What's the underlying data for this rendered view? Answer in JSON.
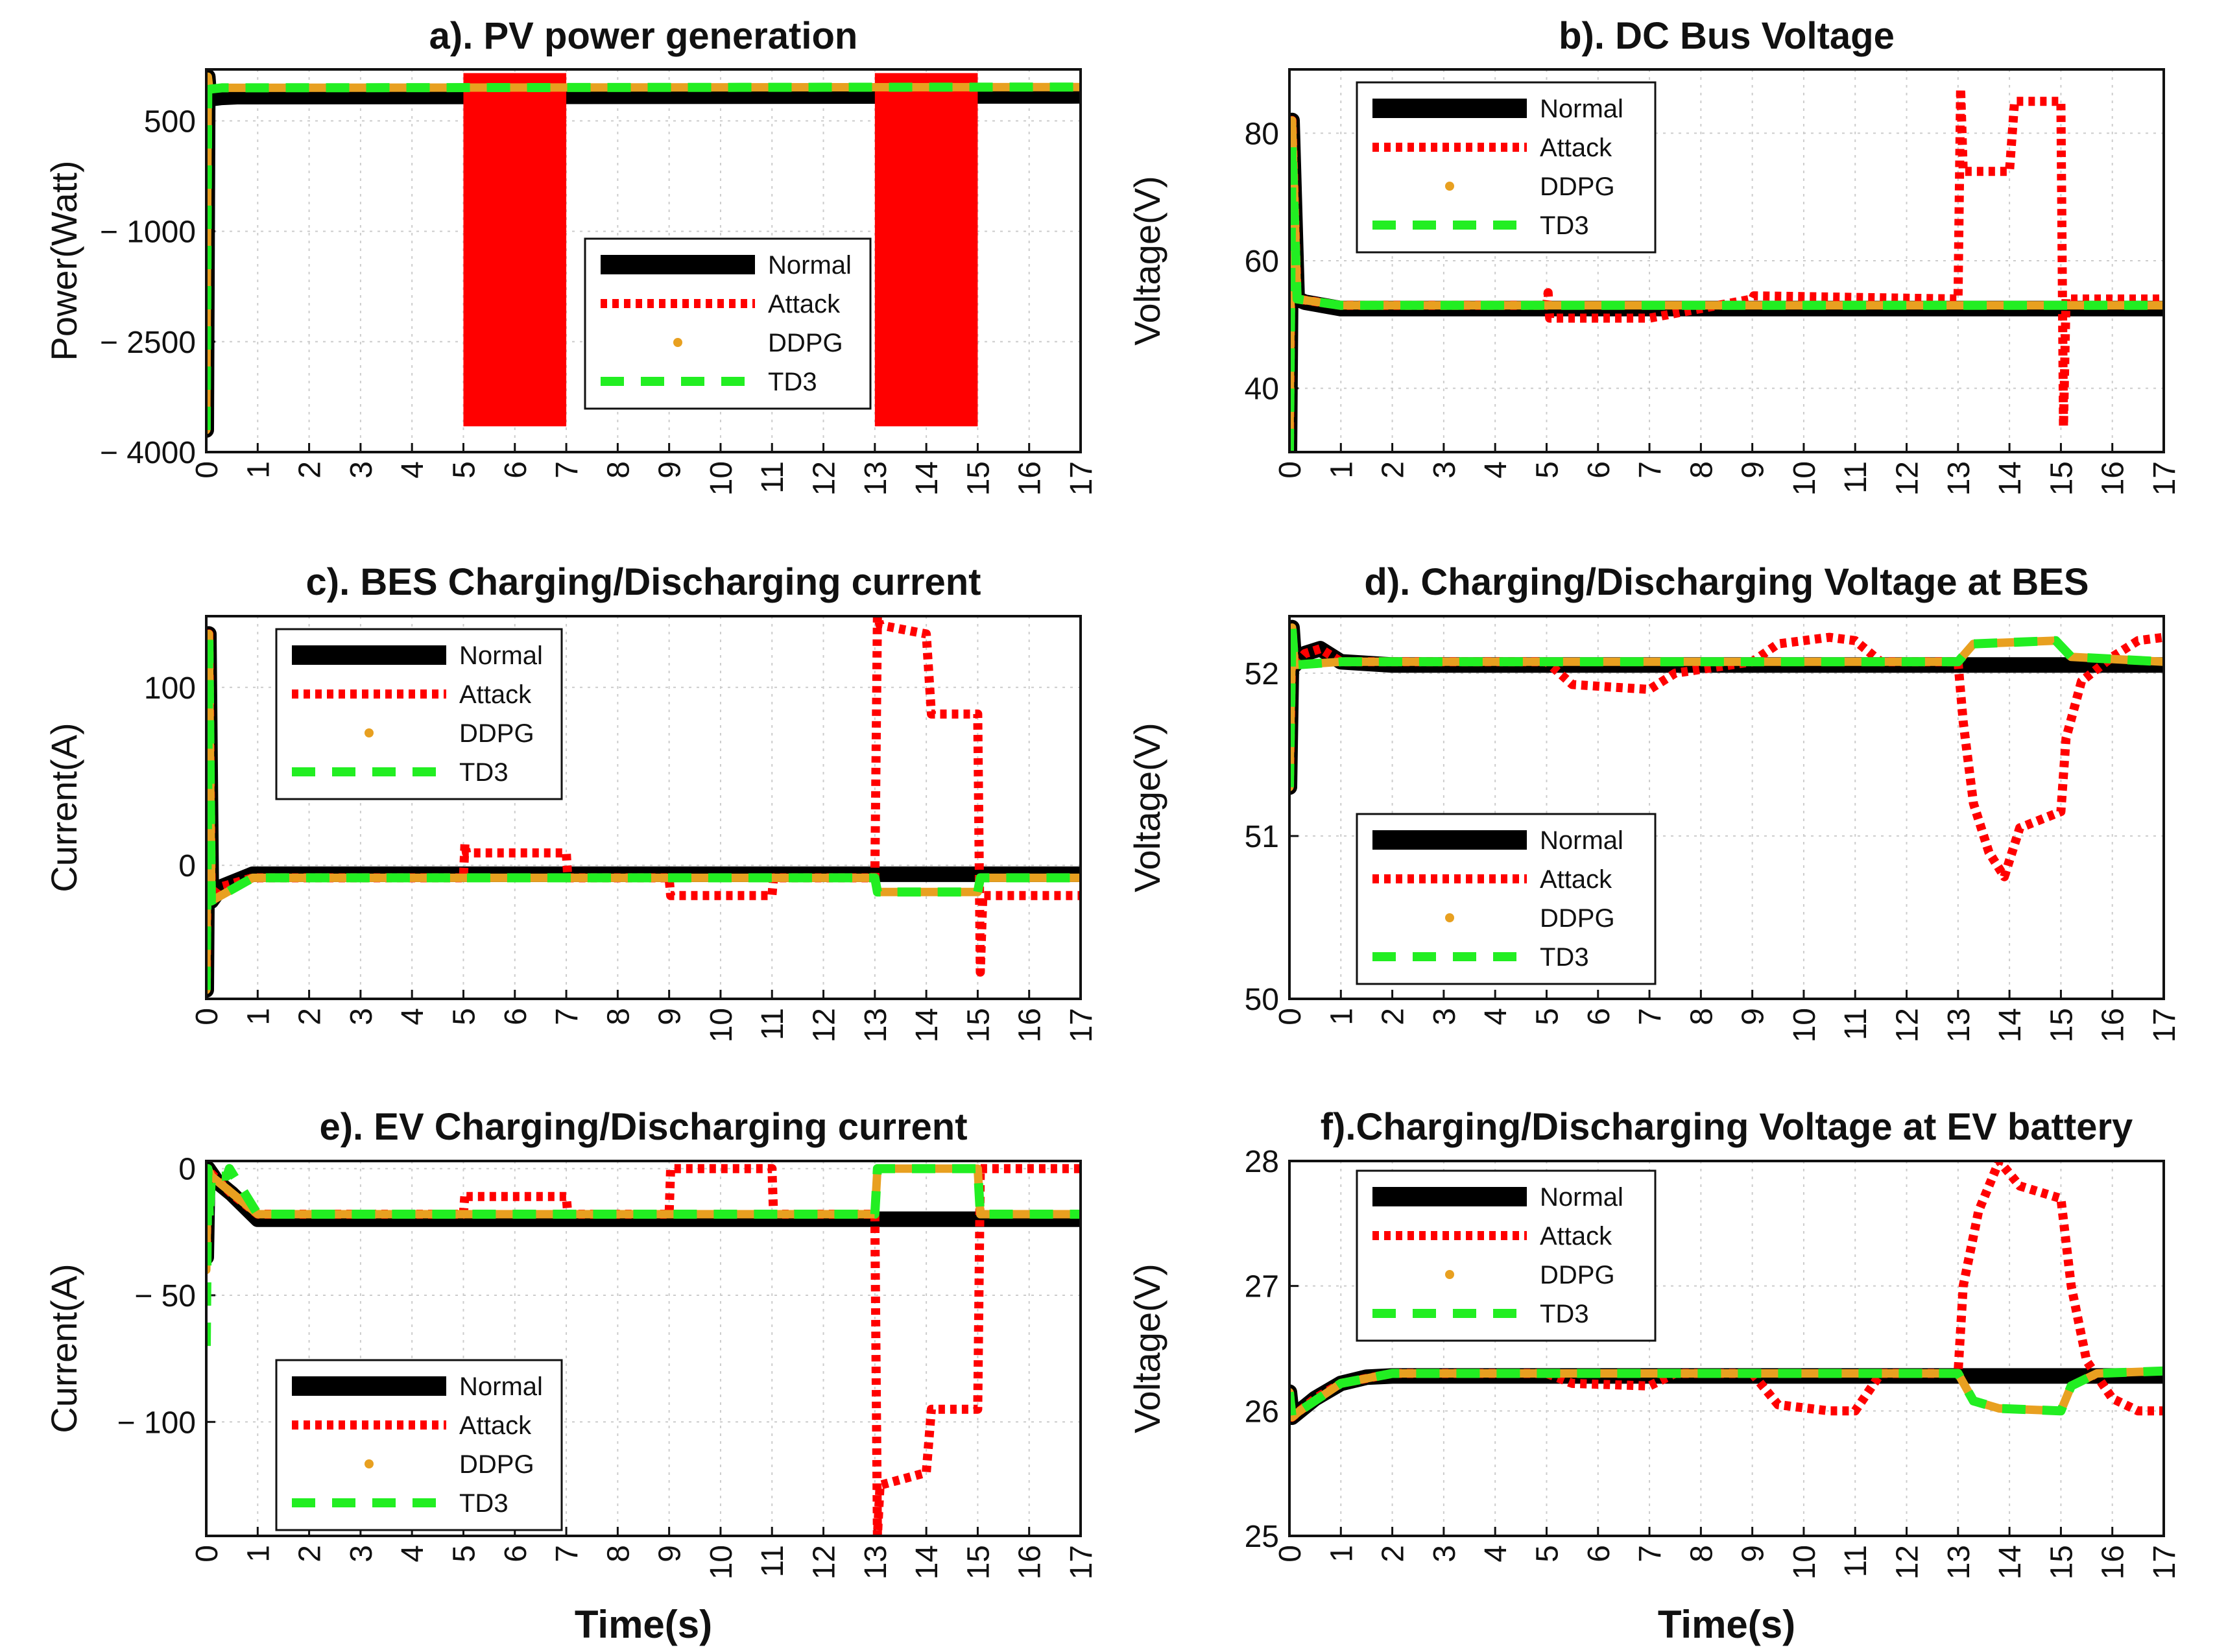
{
  "figure": {
    "x_label": "Time(s)"
  },
  "legend_entries": [
    "Normal",
    "Attack",
    "DDPG",
    "TD3"
  ],
  "colors": {
    "normal": "#000000",
    "attack": "#ff0000",
    "ddpg": "#e8a020",
    "td3": "#22ee22",
    "grid": "#cccccc"
  },
  "chart_data": [
    {
      "id": "a",
      "type": "line",
      "title": "a). PV power generation",
      "ylabel": "Power(Watt)",
      "xlim": [
        0,
        17
      ],
      "ylim": [
        -4000,
        1200
      ],
      "yticks": [
        500,
        -1000,
        -2500,
        -4000
      ],
      "ytick_labels": [
        "500",
        "− 1000",
        "− 2500",
        "− 4000"
      ],
      "legend_position": "center-right",
      "series": [
        {
          "name": "Normal",
          "x": [
            0,
            0.03,
            0.06,
            0.3,
            0.6,
            17
          ],
          "y": [
            -3700,
            1100,
            800,
            820,
            830,
            840
          ]
        },
        {
          "name": "Attack",
          "x": [
            5,
            7,
            13,
            15
          ],
          "y": [
            -3650,
            1150,
            -3650,
            1150
          ]
        },
        {
          "name": "DDPG",
          "x": [
            0,
            0.03,
            0.06,
            0.3,
            17
          ],
          "y": [
            -3700,
            1100,
            930,
            950,
            960
          ]
        },
        {
          "name": "TD3",
          "x": [
            0,
            0.03,
            0.06,
            0.3,
            17
          ],
          "y": [
            -3700,
            1100,
            930,
            950,
            960
          ]
        }
      ]
    },
    {
      "id": "b",
      "type": "line",
      "title": "b). DC Bus Voltage",
      "ylabel": "Voltage(V)",
      "xlim": [
        0,
        17
      ],
      "ylim": [
        30,
        90
      ],
      "yticks": [
        40,
        60,
        80
      ],
      "ytick_labels": [
        "40",
        "60",
        "80"
      ],
      "legend_position": "top-left",
      "series": [
        {
          "name": "Normal",
          "x": [
            0,
            0.05,
            0.15,
            0.3,
            1,
            17
          ],
          "y": [
            30,
            82,
            54,
            53.5,
            52.5,
            52.5
          ]
        },
        {
          "name": "Attack",
          "x": [
            0,
            0.05,
            0.15,
            1,
            5,
            5.03,
            5.06,
            7,
            9,
            9.03,
            13,
            13.05,
            13.1,
            14,
            14.1,
            15,
            15.05,
            15.1,
            17
          ],
          "y": [
            30,
            82,
            54,
            53,
            53,
            55,
            51,
            51,
            54,
            54.5,
            54,
            87,
            74,
            74,
            85,
            85,
            34,
            54,
            54
          ]
        },
        {
          "name": "DDPG",
          "x": [
            0,
            0.05,
            0.15,
            1,
            17
          ],
          "y": [
            30,
            82,
            54,
            53,
            53
          ]
        },
        {
          "name": "TD3",
          "x": [
            0,
            0.05,
            0.15,
            1,
            17
          ],
          "y": [
            30,
            78,
            54,
            53,
            53
          ]
        }
      ]
    },
    {
      "id": "c",
      "type": "line",
      "title": "c). BES Charging/Discharging current",
      "ylabel": "Current(A)",
      "xlim": [
        0,
        17
      ],
      "ylim": [
        -75,
        140
      ],
      "yticks": [
        0,
        100
      ],
      "ytick_labels": [
        "0",
        "100"
      ],
      "legend_position": "top-left",
      "series": [
        {
          "name": "Normal",
          "x": [
            0,
            0.05,
            0.1,
            0.3,
            0.9,
            17
          ],
          "y": [
            -70,
            130,
            -20,
            -12,
            -5,
            -5
          ]
        },
        {
          "name": "Attack",
          "x": [
            0,
            0.05,
            0.1,
            0.3,
            0.9,
            5,
            5.03,
            5.06,
            7,
            7.03,
            9,
            9.03,
            11,
            11.03,
            13,
            13.05,
            13.1,
            14,
            14.1,
            15,
            15.05,
            15.1,
            17
          ],
          "y": [
            -70,
            130,
            -20,
            -12,
            -7,
            -7,
            12,
            7,
            7,
            -7,
            -7,
            -17,
            -17,
            -7,
            -7,
            140,
            135,
            130,
            85,
            85,
            -60,
            -17,
            -17
          ]
        },
        {
          "name": "DDPG",
          "x": [
            0,
            0.05,
            0.1,
            0.9,
            13,
            13.05,
            15,
            15.05,
            17
          ],
          "y": [
            -70,
            130,
            -20,
            -7,
            -7,
            -15,
            -15,
            -7,
            -7
          ]
        },
        {
          "name": "TD3",
          "x": [
            0,
            0.05,
            0.1,
            0.9,
            13,
            13.05,
            15,
            15.05,
            17
          ],
          "y": [
            -70,
            130,
            -20,
            -7,
            -7,
            -15,
            -15,
            -7,
            -7
          ]
        }
      ]
    },
    {
      "id": "d",
      "type": "line",
      "title": "d). Charging/Discharging Voltage at BES",
      "ylabel": "Voltage(V)",
      "xlim": [
        0,
        17
      ],
      "ylim": [
        50,
        52.35
      ],
      "yticks": [
        50,
        51,
        52
      ],
      "ytick_labels": [
        "50",
        "51",
        "52"
      ],
      "legend_position": "bottom-left",
      "series": [
        {
          "name": "Normal",
          "x": [
            0,
            0.05,
            0.1,
            0.3,
            0.6,
            1,
            2,
            17
          ],
          "y": [
            51.3,
            52.28,
            52.05,
            52.12,
            52.15,
            52.07,
            52.05,
            52.05
          ]
        },
        {
          "name": "Attack",
          "x": [
            0,
            0.05,
            0.1,
            0.3,
            0.6,
            1,
            5,
            5.5,
            7,
            7.5,
            9,
            9.5,
            10.5,
            11,
            11.5,
            13,
            13.1,
            13.3,
            13.6,
            13.9,
            14.0,
            14.2,
            15,
            15.1,
            15.4,
            16,
            16.5,
            17
          ],
          "y": [
            51.3,
            52.28,
            52.05,
            52.12,
            52.15,
            52.07,
            52.07,
            51.93,
            51.9,
            52.0,
            52.07,
            52.18,
            52.22,
            52.2,
            52.07,
            52.07,
            51.7,
            51.2,
            50.9,
            50.75,
            50.85,
            51.05,
            51.15,
            51.6,
            51.95,
            52.1,
            52.2,
            52.22
          ]
        },
        {
          "name": "DDPG",
          "x": [
            0,
            0.05,
            0.1,
            1,
            13,
            13.3,
            14.9,
            15.2,
            17
          ],
          "y": [
            51.3,
            52.28,
            52.05,
            52.07,
            52.07,
            52.18,
            52.2,
            52.1,
            52.07
          ]
        },
        {
          "name": "TD3",
          "x": [
            0,
            0.05,
            0.1,
            1,
            13,
            13.3,
            14.9,
            15.2,
            17
          ],
          "y": [
            51.3,
            52.28,
            52.05,
            52.07,
            52.07,
            52.18,
            52.2,
            52.1,
            52.07
          ]
        }
      ]
    },
    {
      "id": "e",
      "type": "line",
      "title": "e). EV Charging/Discharging current",
      "ylabel": "Current(A)",
      "xlim": [
        0,
        17
      ],
      "ylim": [
        -145,
        3
      ],
      "yticks": [
        0,
        -50,
        -100
      ],
      "ytick_labels": [
        "0",
        "− 50",
        "− 100"
      ],
      "legend_position": "bottom-left",
      "series": [
        {
          "name": "Normal",
          "x": [
            0,
            0.03,
            0.1,
            0.2,
            0.5,
            1,
            17
          ],
          "y": [
            -35,
            0,
            -2,
            -5,
            -10,
            -20,
            -20
          ]
        },
        {
          "name": "Attack",
          "x": [
            0,
            0.03,
            0.1,
            0.5,
            1,
            5,
            5.03,
            5.06,
            7,
            7.03,
            9,
            9.03,
            11,
            11.03,
            13,
            13.05,
            13.1,
            14,
            14.1,
            15,
            15.05,
            15.1,
            17
          ],
          "y": [
            -35,
            0,
            -2,
            -10,
            -18,
            -18,
            -10,
            -11,
            -11,
            -18,
            -18,
            0,
            0,
            -18,
            -18,
            -145,
            -125,
            -120,
            -95,
            -95,
            0,
            0,
            0
          ]
        },
        {
          "name": "DDPG",
          "x": [
            0,
            0.03,
            0.1,
            1,
            13,
            13.05,
            15,
            15.05,
            17
          ],
          "y": [
            -40,
            0,
            -3,
            -18,
            -18,
            0,
            0,
            -18,
            -18
          ]
        },
        {
          "name": "TD3",
          "x": [
            0,
            0.03,
            0.06,
            0.1,
            0.4,
            0.45,
            1,
            13,
            13.05,
            15,
            15.05,
            17
          ],
          "y": [
            -70,
            0,
            -20,
            -3,
            -3,
            0,
            -18,
            -18,
            0,
            0,
            -18,
            -18
          ]
        }
      ]
    },
    {
      "id": "f",
      "type": "line",
      "title": "f).Charging/Discharging Voltage at EV battery",
      "ylabel": "Voltage(V)",
      "xlim": [
        0,
        17
      ],
      "ylim": [
        25,
        28
      ],
      "yticks": [
        25,
        26,
        27,
        28
      ],
      "ytick_labels": [
        "25",
        "26",
        "27",
        "28"
      ],
      "legend_position": "top-left",
      "series": [
        {
          "name": "Normal",
          "x": [
            0,
            0.05,
            0.2,
            0.5,
            1,
            1.5,
            2,
            17
          ],
          "y": [
            26.15,
            25.95,
            26.0,
            26.1,
            26.22,
            26.27,
            26.28,
            26.28
          ]
        },
        {
          "name": "Attack",
          "x": [
            0,
            0.05,
            0.2,
            0.5,
            1,
            2,
            5,
            5.5,
            7,
            7.5,
            9,
            9.5,
            10.5,
            11,
            11.5,
            13,
            13.1,
            13.4,
            13.8,
            14.2,
            15,
            15.2,
            15.5,
            16,
            16.5,
            17
          ],
          "y": [
            26.15,
            25.95,
            26.0,
            26.1,
            26.22,
            26.3,
            26.3,
            26.22,
            26.2,
            26.3,
            26.3,
            26.05,
            26.0,
            26.0,
            26.3,
            26.3,
            27.0,
            27.6,
            28.0,
            27.8,
            27.7,
            27.0,
            26.4,
            26.1,
            26.0,
            26.0
          ]
        },
        {
          "name": "DDPG",
          "x": [
            0,
            0.05,
            0.2,
            1,
            2,
            13,
            13.3,
            13.8,
            15,
            15.2,
            15.7,
            17
          ],
          "y": [
            26.15,
            25.95,
            26.0,
            26.22,
            26.3,
            26.3,
            26.08,
            26.02,
            26.0,
            26.2,
            26.3,
            26.32
          ]
        },
        {
          "name": "TD3",
          "x": [
            0,
            0.05,
            0.2,
            1,
            2,
            13,
            13.3,
            13.8,
            15,
            15.2,
            15.7,
            17
          ],
          "y": [
            26.15,
            25.95,
            26.0,
            26.22,
            26.3,
            26.3,
            26.08,
            26.02,
            26.0,
            26.2,
            26.3,
            26.32
          ]
        }
      ]
    }
  ]
}
